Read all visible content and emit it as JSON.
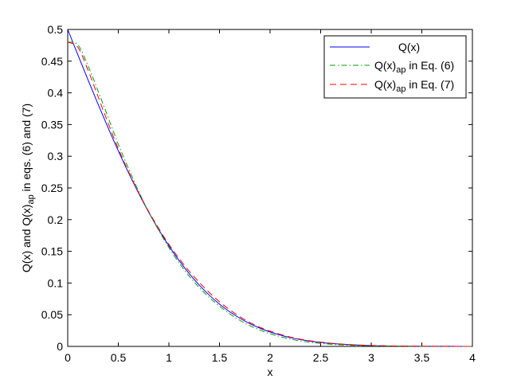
{
  "chart_data": {
    "type": "line",
    "xlabel": "x",
    "ylabel": {
      "prefix": "Q(x) and Q(x)",
      "sub": "ap",
      "suffix": " in eqs. (6) and (7)"
    },
    "xlim": [
      0,
      4
    ],
    "ylim": [
      0,
      0.5
    ],
    "x_ticks": [
      0,
      0.5,
      1,
      1.5,
      2,
      2.5,
      3,
      3.5,
      4
    ],
    "x_tick_labels": [
      "0",
      "0.5",
      "1",
      "1.5",
      "2",
      "2.5",
      "3",
      "3.5",
      "4"
    ],
    "y_ticks": [
      0,
      0.05,
      0.1,
      0.15,
      0.2,
      0.25,
      0.3,
      0.35,
      0.4,
      0.45,
      0.5
    ],
    "y_tick_labels": [
      "0",
      "0.05",
      "0.1",
      "0.15",
      "0.2",
      "0.25",
      "0.3",
      "0.35",
      "0.4",
      "0.45",
      "0.5"
    ],
    "grid": false,
    "legend_position": "top-right",
    "x": [
      0,
      0.1,
      0.2,
      0.3,
      0.4,
      0.5,
      0.6,
      0.7,
      0.8,
      0.9,
      1.0,
      1.1,
      1.2,
      1.3,
      1.4,
      1.5,
      1.6,
      1.7,
      1.8,
      1.9,
      2.0,
      2.2,
      2.4,
      2.6,
      2.8,
      3.0,
      3.2,
      3.4,
      3.6,
      3.8,
      4.0
    ],
    "series": [
      {
        "legend_main": "Q(x)",
        "legend_sub": "",
        "legend_suffix": "",
        "color": "#0000ff",
        "dash": "",
        "values": [
          0.5,
          0.4602,
          0.4207,
          0.3821,
          0.3446,
          0.3085,
          0.2743,
          0.242,
          0.2119,
          0.1841,
          0.1587,
          0.1357,
          0.1151,
          0.0968,
          0.0808,
          0.0668,
          0.0548,
          0.0446,
          0.0359,
          0.0287,
          0.0228,
          0.0139,
          0.0082,
          0.0047,
          0.0026,
          0.0013,
          0.0007,
          0.0003,
          0.0002,
          0.0001,
          0.0
        ]
      },
      {
        "legend_main": "Q(x)",
        "legend_sub": "ap",
        "legend_suffix": " in Eq. (6)",
        "color": "#00a000",
        "dash": "7,3,1.5,3",
        "values": [
          0.48,
          0.476,
          0.443,
          0.403,
          0.361,
          0.319,
          0.281,
          0.245,
          0.212,
          0.183,
          0.156,
          0.132,
          0.111,
          0.093,
          0.077,
          0.0635,
          0.0515,
          0.0413,
          0.0328,
          0.0258,
          0.02,
          0.0115,
          0.0064,
          0.0034,
          0.0018,
          0.0009,
          0.0005,
          0.0002,
          0.0001,
          0.0,
          0.0
        ]
      },
      {
        "legend_main": "Q(x)",
        "legend_sub": "ap",
        "legend_suffix": " in Eq. (7)",
        "color": "#ff0000",
        "dash": "8,5",
        "values": [
          0.48,
          0.472,
          0.436,
          0.394,
          0.352,
          0.312,
          0.276,
          0.243,
          0.213,
          0.186,
          0.161,
          0.139,
          0.119,
          0.101,
          0.085,
          0.0705,
          0.058,
          0.047,
          0.0378,
          0.0302,
          0.024,
          0.0148,
          0.0088,
          0.0051,
          0.0028,
          0.0015,
          0.0008,
          0.0004,
          0.0002,
          0.0001,
          0.0
        ]
      }
    ]
  }
}
